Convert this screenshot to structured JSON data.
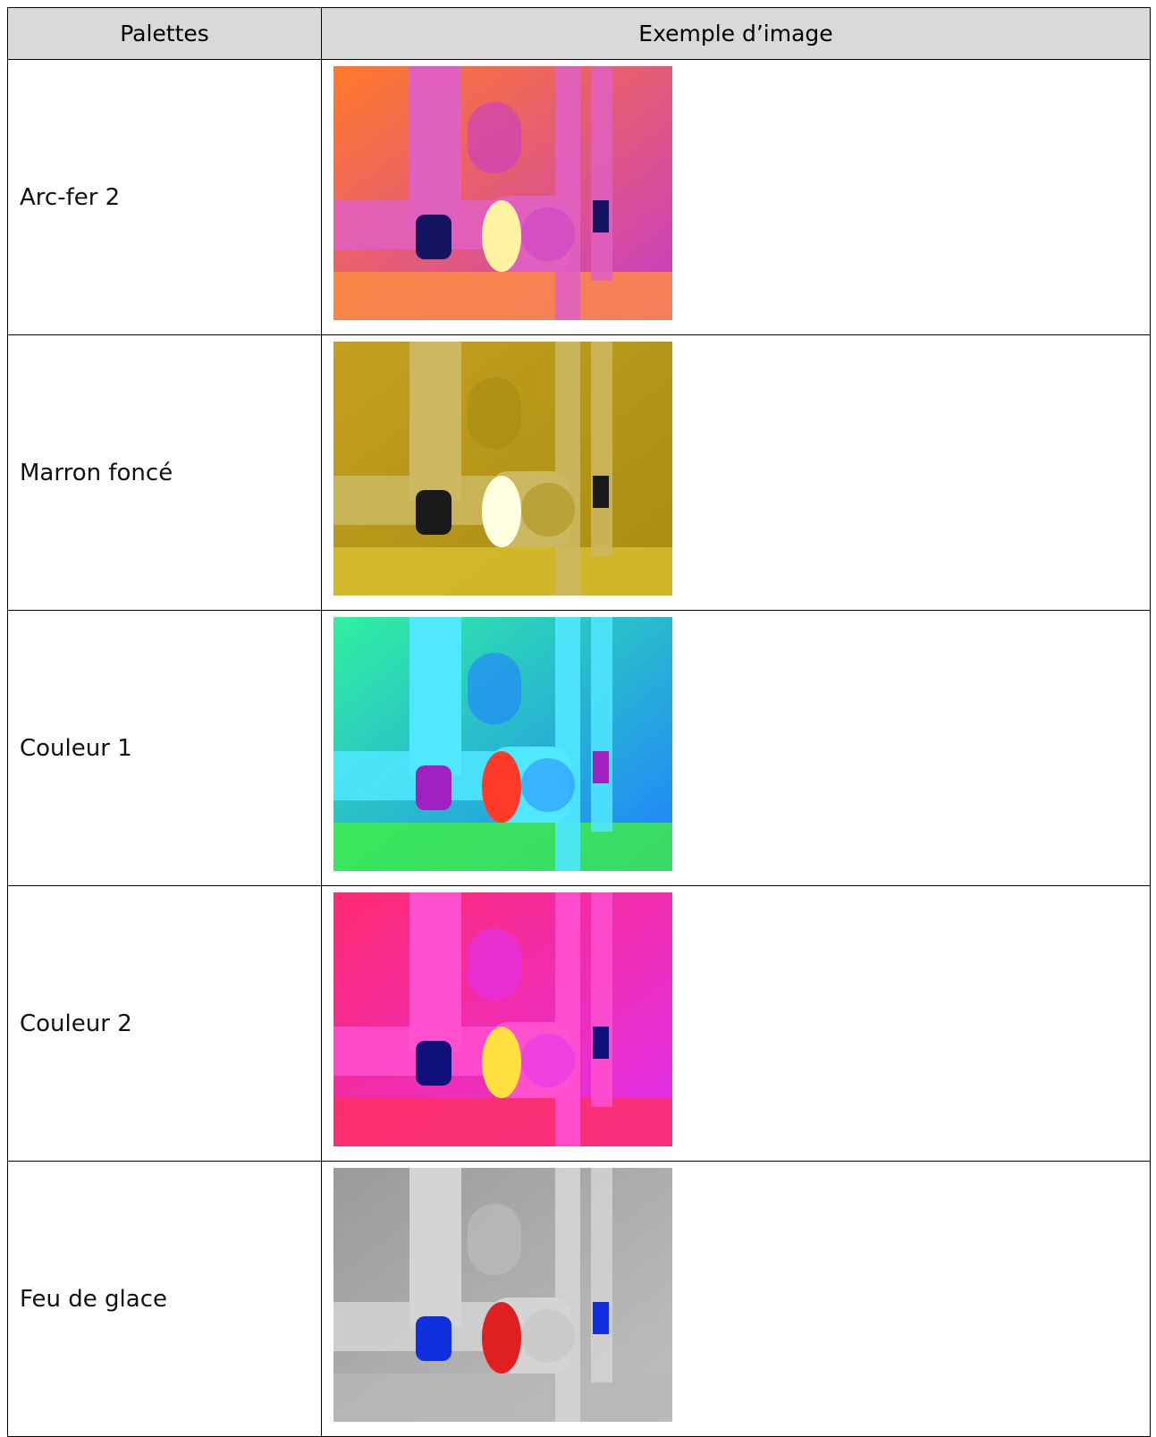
{
  "table": {
    "header": [
      "Palettes",
      "Exemple d’image"
    ],
    "rows": [
      [
        "Arc-fer 2"
      ],
      [
        "Marron foncé"
      ],
      [
        "Couleur 1"
      ],
      [
        "Couleur 2"
      ],
      [
        "Feu de glace"
      ]
    ]
  }
}
